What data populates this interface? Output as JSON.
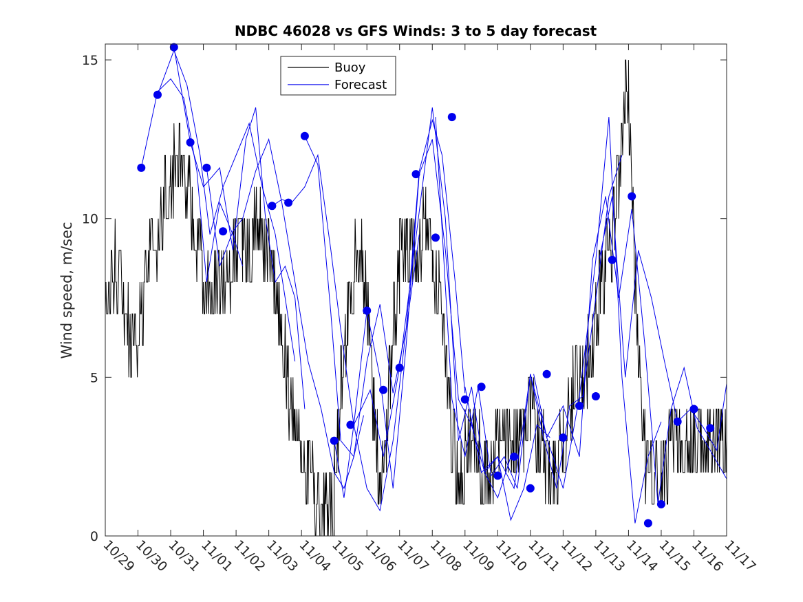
{
  "chart_data": {
    "type": "line",
    "title": "NDBC 46028 vs GFS Winds: 3 to 5 day forecast",
    "xlabel": "",
    "ylabel": "Wind speed, m/sec",
    "x_unit": "days since 10/29",
    "xlim": [
      0,
      19
    ],
    "ylim": [
      0,
      15.5
    ],
    "x_ticks": [
      {
        "x": 0,
        "label": "10/29"
      },
      {
        "x": 1,
        "label": "10/30"
      },
      {
        "x": 2,
        "label": "10/31"
      },
      {
        "x": 3,
        "label": "11/01"
      },
      {
        "x": 4,
        "label": "11/02"
      },
      {
        "x": 5,
        "label": "11/03"
      },
      {
        "x": 6,
        "label": "11/04"
      },
      {
        "x": 7,
        "label": "11/05"
      },
      {
        "x": 8,
        "label": "11/06"
      },
      {
        "x": 9,
        "label": "11/07"
      },
      {
        "x": 10,
        "label": "11/08"
      },
      {
        "x": 11,
        "label": "11/09"
      },
      {
        "x": 12,
        "label": "11/10"
      },
      {
        "x": 13,
        "label": "11/11"
      },
      {
        "x": 14,
        "label": "11/12"
      },
      {
        "x": 15,
        "label": "11/13"
      },
      {
        "x": 16,
        "label": "11/14"
      },
      {
        "x": 17,
        "label": "11/15"
      },
      {
        "x": 18,
        "label": "11/16"
      },
      {
        "x": 19,
        "label": "11/17"
      }
    ],
    "y_ticks": [
      {
        "y": 0,
        "label": "0"
      },
      {
        "y": 5,
        "label": "5"
      },
      {
        "y": 10,
        "label": "10"
      },
      {
        "y": 15,
        "label": "15"
      }
    ],
    "legend": {
      "position": "top-center",
      "entries": [
        "Buoy",
        "Forecast"
      ]
    },
    "grid": false,
    "series": [
      {
        "name": "Buoy",
        "color": "#000000",
        "style": "step-noisy",
        "x": [
          0,
          0.3,
          0.5,
          0.7,
          0.9,
          1.1,
          1.3,
          1.5,
          1.8,
          2.1,
          2.4,
          2.7,
          3.0,
          3.3,
          3.6,
          3.9,
          4.2,
          4.5,
          4.8,
          5.0,
          5.2,
          5.4,
          5.6,
          5.8,
          6.0,
          6.2,
          6.4,
          6.6,
          6.8,
          7.0,
          7.2,
          7.4,
          7.6,
          7.8,
          8.0,
          8.2,
          8.4,
          8.6,
          8.8,
          9.0,
          9.2,
          9.4,
          9.6,
          9.8,
          10.0,
          10.2,
          10.4,
          10.6,
          10.8,
          11.0,
          11.3,
          11.6,
          11.9,
          12.2,
          12.5,
          12.8,
          13.1,
          13.4,
          13.7,
          14.0,
          14.3,
          14.6,
          14.9,
          15.1,
          15.3,
          15.5,
          15.7,
          15.9,
          16.0,
          16.2,
          16.4,
          16.6,
          16.8,
          17.0,
          17.3,
          17.6,
          17.9,
          18.2,
          18.5,
          18.8,
          19.0
        ],
        "y": [
          7.5,
          8.5,
          7.5,
          6.5,
          6.0,
          7.0,
          8.5,
          8.5,
          10.5,
          11.5,
          11.5,
          10.0,
          8.0,
          7.5,
          8.0,
          8.5,
          9.0,
          9.5,
          9.5,
          8.5,
          7.5,
          6.5,
          4.5,
          3.5,
          3.0,
          2.0,
          1.5,
          1.0,
          1.0,
          1.5,
          4.5,
          7.0,
          8.5,
          9.0,
          7.5,
          4.0,
          1.5,
          3.5,
          6.5,
          8.5,
          9.5,
          9.0,
          9.0,
          10.0,
          9.0,
          7.5,
          5.5,
          3.0,
          2.0,
          2.5,
          3.0,
          2.0,
          2.5,
          3.0,
          2.5,
          3.5,
          3.5,
          2.5,
          2.0,
          3.0,
          4.5,
          5.0,
          6.0,
          7.5,
          8.5,
          9.5,
          11.0,
          13.5,
          14.0,
          8.0,
          3.0,
          2.0,
          1.5,
          1.5,
          3.0,
          2.5,
          3.5,
          3.0,
          2.5,
          2.5,
          3.0
        ]
      },
      {
        "name": "Forecast",
        "color": "#0000ee",
        "style": "multi-run",
        "runs": [
          {
            "x": [
              1.1,
              1.6,
              2.0,
              2.4,
              2.8,
              3.1,
              3.5,
              3.9,
              4.2
            ],
            "y": [
              11.6,
              14.0,
              14.4,
              13.8,
              11.5,
              8.0,
              10.5,
              9.5,
              8.5
            ]
          },
          {
            "x": [
              1.6,
              2.1,
              2.5,
              2.9,
              3.2,
              3.6,
              4.0,
              4.4,
              4.8,
              5.2,
              5.5,
              5.8
            ],
            "y": [
              13.9,
              15.3,
              14.2,
              12.0,
              9.5,
              11.0,
              12.0,
              13.0,
              11.0,
              9.5,
              7.5,
              5.5
            ]
          },
          {
            "x": [
              2.1,
              2.6,
              3.0,
              3.5,
              3.9,
              4.3,
              4.6,
              4.9,
              5.2,
              5.5,
              5.8,
              6.1
            ],
            "y": [
              15.4,
              12.4,
              11.0,
              11.6,
              9.0,
              12.5,
              13.5,
              10.0,
              8.0,
              8.5,
              7.5,
              4.0
            ]
          },
          {
            "x": [
              3.1,
              3.5,
              3.9,
              4.2,
              4.6,
              5.0,
              5.4,
              5.8,
              6.2,
              6.6,
              7.0,
              7.3,
              7.6,
              7.9
            ],
            "y": [
              11.6,
              8.5,
              9.6,
              10.0,
              11.5,
              12.5,
              10.5,
              8.0,
              5.5,
              4.0,
              2.0,
              1.5,
              2.5,
              3.8
            ]
          },
          {
            "x": [
              5.1,
              5.4,
              5.7,
              6.1,
              6.5,
              6.9,
              7.2,
              7.6,
              8.0,
              8.4,
              8.8,
              9.2,
              9.6
            ],
            "y": [
              10.4,
              10.6,
              10.5,
              11.0,
              12.0,
              9.0,
              6.5,
              3.5,
              1.5,
              0.8,
              3.0,
              6.5,
              9.5
            ]
          },
          {
            "x": [
              6.1,
              6.5,
              6.9,
              7.2,
              7.6,
              8.0,
              8.4,
              8.8,
              9.2,
              9.6,
              10.0,
              10.3,
              10.7,
              11.0
            ],
            "y": [
              12.6,
              11.7,
              7.0,
              3.0,
              2.5,
              5.5,
              7.3,
              4.5,
              6.5,
              11.5,
              13.1,
              12.0,
              8.0,
              4.5
            ]
          },
          {
            "x": [
              7.0,
              7.3,
              7.6,
              8.0,
              8.4,
              8.8,
              9.2,
              9.6,
              10.0,
              10.4,
              10.8,
              11.2,
              11.6,
              12.0,
              12.4
            ],
            "y": [
              3.0,
              1.2,
              3.5,
              7.1,
              5.0,
              1.5,
              6.0,
              11.4,
              12.5,
              9.0,
              4.3,
              3.5,
              2.0,
              1.2,
              2.5
            ]
          },
          {
            "x": [
              7.6,
              8.1,
              8.5,
              9.0,
              9.5,
              10.0,
              10.4,
              10.8,
              11.2,
              11.6,
              12.0,
              12.4,
              12.8,
              13.2,
              13.6
            ],
            "y": [
              3.5,
              4.6,
              2.5,
              5.3,
              9.4,
              13.5,
              10.0,
              3.0,
              4.7,
              2.0,
              2.5,
              0.5,
              1.5,
              3.5,
              3.1
            ]
          },
          {
            "x": [
              10.1,
              10.6,
              11.0,
              11.4,
              11.8,
              12.2,
              12.6,
              13.0,
              13.4,
              13.8,
              14.2,
              14.6,
              15.0,
              15.4,
              15.8
            ],
            "y": [
              13.2,
              4.3,
              2.5,
              4.7,
              1.9,
              2.5,
              1.5,
              5.1,
              3.1,
              1.5,
              4.1,
              4.4,
              7.5,
              10.7,
              12.0
            ]
          },
          {
            "x": [
              11.0,
              11.5,
              12.0,
              12.5,
              13.0,
              13.5,
              14.0,
              14.5,
              15.0,
              15.4,
              15.8,
              16.2,
              16.6,
              17.0
            ],
            "y": [
              4.7,
              2.0,
              2.5,
              1.5,
              5.1,
              3.1,
              1.5,
              4.4,
              8.7,
              13.2,
              5.0,
              0.4,
              2.5,
              3.6
            ]
          },
          {
            "x": [
              13.1,
              13.5,
              14.0,
              14.5,
              14.9,
              15.3,
              15.7,
              16.1,
              16.5,
              16.9,
              17.3,
              17.7,
              18.1,
              18.5,
              19.0
            ],
            "y": [
              5.1,
              3.1,
              4.1,
              2.5,
              8.7,
              10.7,
              7.5,
              10.3,
              6.0,
              1.0,
              4.0,
              5.3,
              3.4,
              2.7,
              1.8
            ]
          },
          {
            "x": [
              15.1,
              15.5,
              15.9,
              16.3,
              16.7,
              17.1,
              17.5,
              17.9,
              18.3,
              18.7,
              19.0
            ],
            "y": [
              8.7,
              10.7,
              5.0,
              9.0,
              7.5,
              5.5,
              3.6,
              4.0,
              3.4,
              2.7,
              4.8
            ]
          }
        ],
        "markers": {
          "x": [
            1.1,
            1.6,
            2.1,
            2.6,
            3.1,
            3.6,
            5.1,
            5.6,
            6.1,
            7.0,
            7.5,
            8.0,
            8.5,
            9.0,
            9.5,
            10.1,
            10.6,
            11.0,
            11.5,
            12.0,
            12.5,
            13.0,
            13.5,
            14.0,
            14.5,
            15.0,
            15.5,
            16.1,
            16.6,
            17.0,
            17.5,
            18.0,
            18.5
          ],
          "y": [
            11.6,
            13.9,
            15.4,
            12.4,
            11.6,
            9.6,
            10.4,
            10.5,
            12.6,
            3.0,
            3.5,
            7.1,
            4.6,
            5.3,
            11.4,
            9.4,
            13.2,
            4.3,
            4.7,
            1.9,
            2.5,
            1.5,
            5.1,
            3.1,
            4.1,
            4.4,
            8.7,
            10.7,
            0.4,
            1.0,
            3.6,
            4.0,
            3.4
          ]
        }
      }
    ]
  },
  "colors": {
    "buoy": "#000000",
    "forecast": "#0000ee",
    "axis": "#262626",
    "background": "#ffffff"
  }
}
